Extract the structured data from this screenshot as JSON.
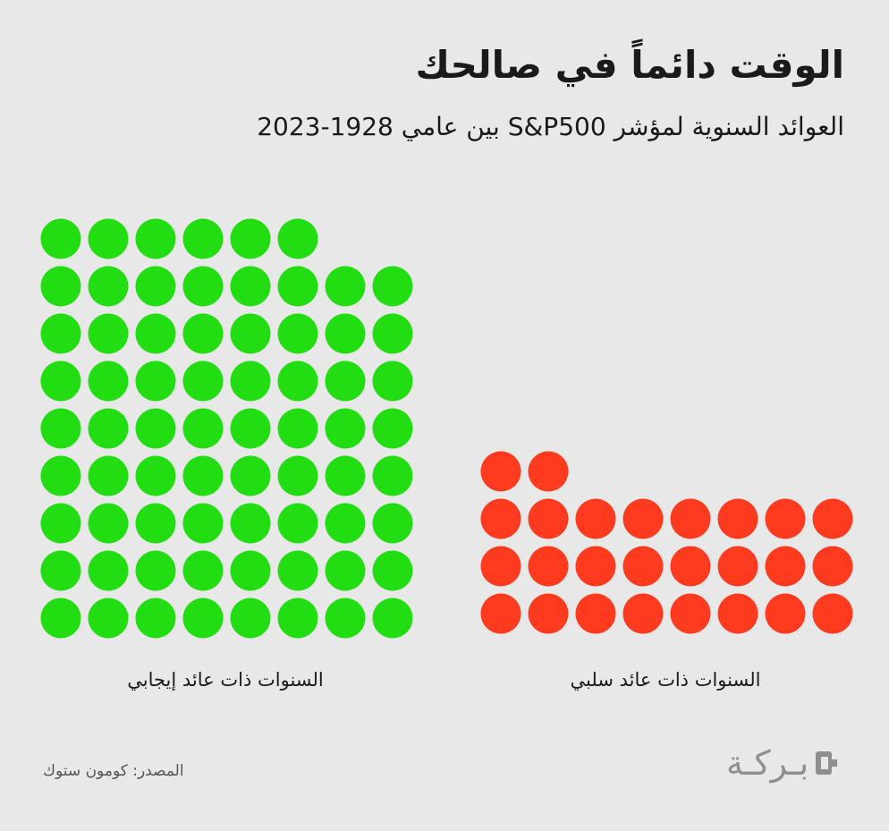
{
  "title": "الوقت دائماً في صالحك",
  "subtitle": "العوائد السنوية لمؤشر S&P500 بين عامي 1928-2023",
  "chart_data": {
    "type": "waffle",
    "series": [
      {
        "name": "السنوات ذات عائد إيجابي",
        "value": 70,
        "color": "#22dd11"
      },
      {
        "name": "السنوات ذات عائد سلبي",
        "value": 26,
        "color": "#ff3b1f"
      }
    ]
  },
  "source": "المصدر: كومون ستوك",
  "brand": {
    "name": "بـركـة",
    "icon": "baraka-logo-icon"
  },
  "colors": {
    "background": "#e8e8e8",
    "positive": "#22dd11",
    "negative": "#ff3b1f"
  }
}
